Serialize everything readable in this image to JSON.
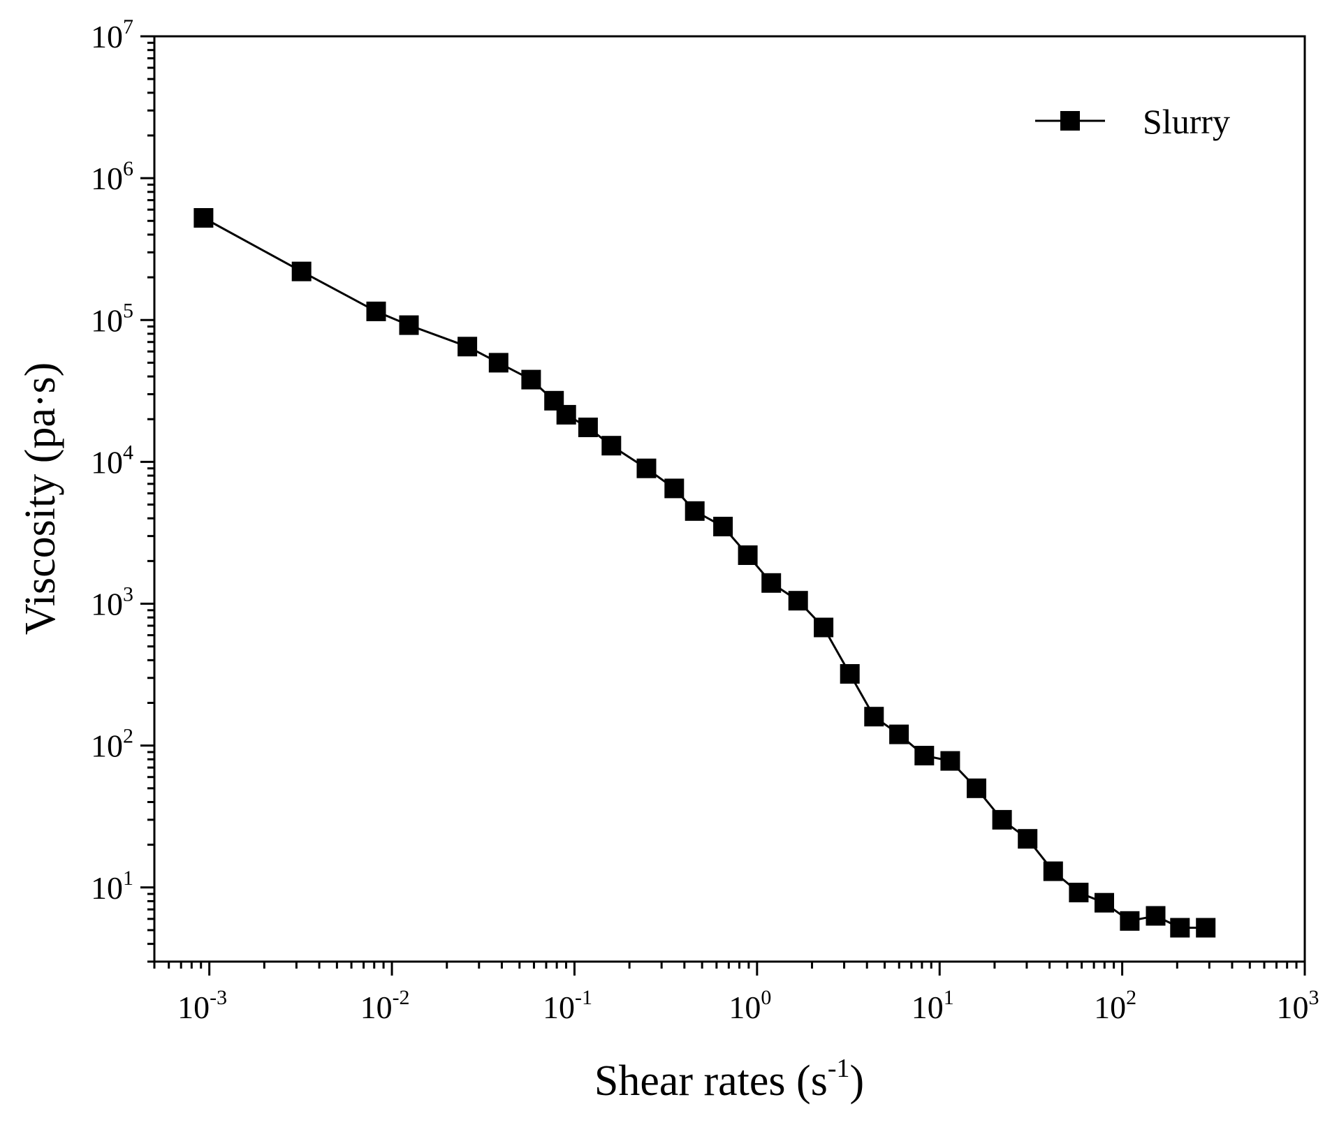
{
  "chart_data": {
    "type": "line",
    "title": "",
    "xlabel": "Shear rates (s-1)",
    "xlabel_parts": {
      "base": "Shear rates (s",
      "sup": "-1",
      "close": ")"
    },
    "ylabel": "Viscosity (pa·s)",
    "xscale": "log",
    "yscale": "log",
    "xlim": [
      0.0005,
      1000
    ],
    "ylim": [
      3,
      10000000
    ],
    "x_ticks": [
      {
        "base": "10",
        "exp": "-3",
        "value": 0.001
      },
      {
        "base": "10",
        "exp": "-2",
        "value": 0.01
      },
      {
        "base": "10",
        "exp": "-1",
        "value": 0.1
      },
      {
        "base": "10",
        "exp": "0",
        "value": 1
      },
      {
        "base": "10",
        "exp": "1",
        "value": 10
      },
      {
        "base": "10",
        "exp": "2",
        "value": 100
      },
      {
        "base": "10",
        "exp": "3",
        "value": 1000
      }
    ],
    "y_ticks": [
      {
        "base": "10",
        "exp": "1",
        "value": 10
      },
      {
        "base": "10",
        "exp": "2",
        "value": 100
      },
      {
        "base": "10",
        "exp": "3",
        "value": 1000
      },
      {
        "base": "10",
        "exp": "4",
        "value": 10000
      },
      {
        "base": "10",
        "exp": "5",
        "value": 100000
      },
      {
        "base": "10",
        "exp": "6",
        "value": 1000000
      },
      {
        "base": "10",
        "exp": "7",
        "value": 10000000
      }
    ],
    "grid": false,
    "legend_position": "top-right",
    "series": [
      {
        "name": "Slurry",
        "marker": "square",
        "color": "#000000",
        "x": [
          0.00093,
          0.0032,
          0.0082,
          0.0124,
          0.0259,
          0.0384,
          0.0579,
          0.0773,
          0.0902,
          0.1187,
          0.1593,
          0.2479,
          0.3519,
          0.4558,
          0.6511,
          0.8896,
          1.1959,
          1.6799,
          2.3148,
          3.2222,
          4.3716,
          5.9926,
          8.2414,
          11.4279,
          15.9211,
          21.969,
          30.3254,
          41.8628,
          57.7997,
          79.7776,
          109.9534,
          152.5013,
          207.1949,
          286.6813
        ],
        "values": [
          525000,
          220000,
          115000,
          92000,
          65000,
          50000,
          38000,
          27000,
          21500,
          17500,
          13000,
          9000,
          6500,
          4500,
          3500,
          2200,
          1400,
          1050,
          680,
          320,
          160,
          120,
          85,
          78,
          50,
          30,
          22,
          13,
          9.2,
          7.8,
          5.8,
          6.3,
          5.2,
          5.2
        ]
      }
    ]
  }
}
